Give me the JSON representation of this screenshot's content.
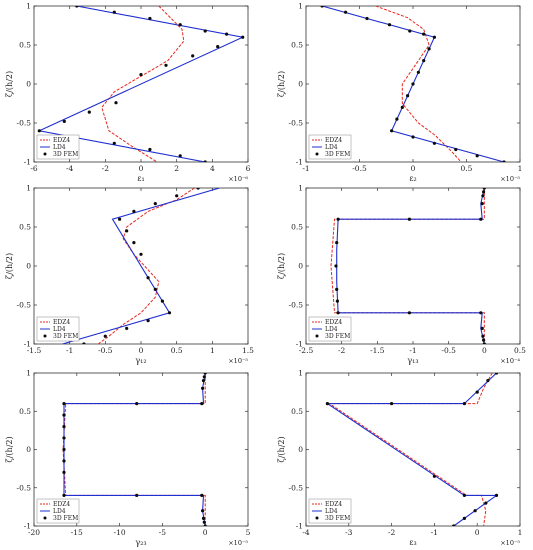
{
  "figure": {
    "colors": {
      "red": "#e8261c",
      "blue": "#1f2fd0",
      "black": "#0a0a0a",
      "axis": "#333333"
    }
  },
  "chart_data": [
    {
      "type": "line",
      "xlabel": "ε₁",
      "ylabel": "ζ/(h/2)",
      "xlim": [
        -6,
        6
      ],
      "ylim": [
        -1,
        1
      ],
      "xticks": [
        -6,
        -4,
        -2,
        0,
        2,
        4,
        6
      ],
      "xtick_labels": [
        "-6",
        "-4",
        "-2",
        "0",
        "2",
        "4",
        "6"
      ],
      "yticks": [
        -1,
        -0.5,
        0,
        0.5,
        1
      ],
      "ytick_labels": [
        "-1",
        "-0.5",
        "0",
        "0.5",
        "1"
      ],
      "exponent": "×10⁻⁶",
      "legend": {
        "position": "bottom-left",
        "entries": [
          "EDZ4",
          "LD4",
          "3D FEM"
        ]
      },
      "series": [
        {
          "name": "EDZ4",
          "style": "dashed-red",
          "x": [
            1.0,
            2.3,
            2.4,
            1.5,
            0.0,
            -1.5,
            -2.2,
            -1.8,
            -0.5,
            0.9
          ],
          "y": [
            1.0,
            0.7,
            0.55,
            0.3,
            0.1,
            -0.1,
            -0.3,
            -0.6,
            -0.8,
            -1.0
          ]
        },
        {
          "name": "LD4",
          "style": "solid-blue",
          "x": [
            -3.6,
            5.7,
            -5.7,
            3.6
          ],
          "y": [
            1.0,
            0.6,
            -0.6,
            -1.0
          ]
        },
        {
          "name": "3D FEM",
          "style": "dots",
          "x": [
            -3.6,
            -1.5,
            0.5,
            2.2,
            3.6,
            4.8,
            5.7,
            4.3,
            2.9,
            1.4,
            0.0,
            -1.4,
            -2.9,
            -4.3,
            -5.7,
            -3.6,
            -1.5,
            0.5,
            2.2,
            3.6
          ],
          "y": [
            1.0,
            0.92,
            0.84,
            0.76,
            0.68,
            0.64,
            0.6,
            0.48,
            0.36,
            0.24,
            0.12,
            -0.24,
            -0.36,
            -0.48,
            -0.6,
            -0.68,
            -0.76,
            -0.84,
            -0.92,
            -1.0
          ]
        }
      ]
    },
    {
      "type": "line",
      "xlabel": "ε₂",
      "ylabel": "ζ/(h/2)",
      "xlim": [
        -1,
        1
      ],
      "ylim": [
        -1,
        1
      ],
      "xticks": [
        -1,
        -0.5,
        0,
        0.5,
        1
      ],
      "xtick_labels": [
        "-1",
        "-0.5",
        "0",
        "0.5",
        "1"
      ],
      "yticks": [
        -1,
        -0.5,
        0,
        0.5,
        1
      ],
      "ytick_labels": [
        "-1",
        "-0.5",
        "0",
        "0.5",
        "1"
      ],
      "exponent": "×10⁻⁵",
      "legend": {
        "position": "bottom-left",
        "entries": [
          "EDZ4",
          "LD4",
          "3D FEM"
        ]
      },
      "series": [
        {
          "name": "EDZ4",
          "style": "dashed-red",
          "x": [
            -0.35,
            -0.05,
            0.1,
            0.15,
            0.05,
            -0.1,
            -0.1,
            0.05,
            0.2,
            0.35,
            0.45
          ],
          "y": [
            1.0,
            0.85,
            0.7,
            0.5,
            0.3,
            0.0,
            -0.25,
            -0.5,
            -0.65,
            -0.85,
            -1.0
          ]
        },
        {
          "name": "LD4",
          "style": "solid-blue",
          "x": [
            -0.85,
            0.2,
            -0.2,
            0.85
          ],
          "y": [
            1.0,
            0.6,
            -0.6,
            -1.0
          ]
        },
        {
          "name": "3D FEM",
          "style": "dots",
          "x": [
            -0.85,
            -0.63,
            -0.43,
            -0.22,
            -0.03,
            0.1,
            0.2,
            0.15,
            0.1,
            0.05,
            0.0,
            -0.05,
            -0.1,
            -0.15,
            -0.2,
            0.0,
            0.2,
            0.4,
            0.6,
            0.85
          ],
          "y": [
            1.0,
            0.92,
            0.84,
            0.76,
            0.68,
            0.64,
            0.6,
            0.45,
            0.3,
            0.15,
            0.0,
            -0.15,
            -0.3,
            -0.45,
            -0.6,
            -0.68,
            -0.76,
            -0.84,
            -0.92,
            -1.0
          ]
        }
      ]
    },
    {
      "type": "line",
      "xlabel": "γ₁₂",
      "ylabel": "ζ/(h/2)",
      "xlim": [
        -1.5,
        1.5
      ],
      "ylim": [
        -1,
        1
      ],
      "xticks": [
        -1.5,
        -1,
        -0.5,
        0,
        0.5,
        1,
        1.5
      ],
      "xtick_labels": [
        "-1.5",
        "-1",
        "-0.5",
        "0",
        "0.5",
        "1",
        "1.5"
      ],
      "yticks": [
        -1,
        -0.5,
        0,
        0.5,
        1
      ],
      "ytick_labels": [
        "-1",
        "-0.5",
        "0",
        "0.5",
        "1"
      ],
      "exponent": "×10⁻⁵",
      "legend": {
        "position": "bottom-left",
        "entries": [
          "EDZ4",
          "LD4",
          "3D FEM"
        ]
      },
      "series": [
        {
          "name": "EDZ4",
          "style": "dashed-red",
          "x": [
            0.75,
            0.5,
            0.1,
            -0.2,
            -0.25,
            -0.1,
            0.1,
            0.25,
            0.2,
            0.0,
            -0.25,
            -0.45,
            -0.6
          ],
          "y": [
            1.0,
            0.85,
            0.7,
            0.5,
            0.35,
            0.15,
            -0.05,
            -0.2,
            -0.4,
            -0.6,
            -0.75,
            -0.9,
            -1.0
          ]
        },
        {
          "name": "LD4",
          "style": "solid-blue",
          "x": [
            1.1,
            -0.4,
            0.4,
            -1.1
          ],
          "y": [
            1.0,
            0.6,
            -0.6,
            -1.0
          ]
        },
        {
          "name": "3D FEM",
          "style": "dots",
          "x": [
            0.8,
            0.5,
            0.2,
            -0.1,
            -0.3,
            -0.2,
            -0.1,
            0.0,
            0.1,
            0.2,
            0.3,
            0.4,
            0.1,
            -0.2,
            -0.5,
            -0.8
          ],
          "y": [
            1.0,
            0.9,
            0.8,
            0.7,
            0.6,
            0.45,
            0.3,
            0.15,
            -0.15,
            -0.3,
            -0.45,
            -0.6,
            -0.7,
            -0.8,
            -0.9,
            -1.0
          ]
        }
      ]
    },
    {
      "type": "line",
      "xlabel": "γ₁₃",
      "ylabel": "ζ/(h/2)",
      "xlim": [
        -2.5,
        0.5
      ],
      "ylim": [
        -1,
        1
      ],
      "xticks": [
        -2.5,
        -2,
        -1.5,
        -1,
        -0.5,
        0,
        0.5
      ],
      "xtick_labels": [
        "-2.5",
        "-2",
        "-1.5",
        "-1",
        "-0.5",
        "0",
        "0.5"
      ],
      "yticks": [
        -1,
        -0.5,
        0,
        0.5,
        1
      ],
      "ytick_labels": [
        "-1",
        "-0.5",
        "0",
        "0.5",
        "1"
      ],
      "exponent": "×10⁻⁴",
      "legend": {
        "position": "bottom-left",
        "entries": [
          "EDZ4",
          "LD4",
          "3D FEM"
        ]
      },
      "series": [
        {
          "name": "EDZ4",
          "style": "dashed-red",
          "x": [
            0.0,
            0.0,
            -2.1,
            -2.15,
            -2.1,
            0.0,
            0.0
          ],
          "y": [
            1.0,
            0.6,
            0.6,
            0.0,
            -0.6,
            -0.6,
            -1.0
          ]
        },
        {
          "name": "LD4",
          "style": "solid-blue",
          "x": [
            0.0,
            -0.05,
            -0.03,
            -2.05,
            -2.07,
            -2.07,
            -2.07,
            -2.05,
            -0.03,
            -0.05,
            0.0
          ],
          "y": [
            1.0,
            0.8,
            0.6,
            0.6,
            0.2,
            0.0,
            -0.2,
            -0.6,
            -0.6,
            -0.8,
            -1.0
          ]
        },
        {
          "name": "3D FEM",
          "style": "dots",
          "x": [
            0.0,
            -0.01,
            -0.02,
            -0.03,
            -0.05,
            -1.05,
            -2.05,
            -2.07,
            -2.08,
            -2.07,
            -2.06,
            -2.05,
            -1.05,
            -0.05,
            -0.03,
            -0.02,
            -0.01,
            0.0
          ],
          "y": [
            1.0,
            0.95,
            0.9,
            0.8,
            0.6,
            0.6,
            0.6,
            0.3,
            0.0,
            -0.3,
            -0.45,
            -0.6,
            -0.6,
            -0.6,
            -0.8,
            -0.9,
            -0.95,
            -1.0
          ]
        }
      ]
    },
    {
      "type": "line",
      "xlabel": "γ₂₃",
      "ylabel": "ζ/(h/2)",
      "xlim": [
        -20,
        5
      ],
      "ylim": [
        -1,
        1
      ],
      "xticks": [
        -20,
        -15,
        -10,
        -5,
        0,
        5
      ],
      "xtick_labels": [
        "-20",
        "-15",
        "-10",
        "-5",
        "0",
        "5"
      ],
      "yticks": [
        -1,
        -0.5,
        0,
        0.5,
        1
      ],
      "ytick_labels": [
        "-1",
        "-0.5",
        "0",
        "0.5",
        "1"
      ],
      "exponent": "×10⁻⁵",
      "legend": {
        "position": "bottom-left",
        "entries": [
          "EDZ4",
          "LD4",
          "3D FEM"
        ]
      },
      "series": [
        {
          "name": "EDZ4",
          "style": "dashed-red",
          "x": [
            0.0,
            0.0,
            -16.3,
            -16.6,
            -16.3,
            0.0,
            0.0
          ],
          "y": [
            1.0,
            0.6,
            0.6,
            0.0,
            -0.6,
            -0.6,
            -1.0
          ]
        },
        {
          "name": "LD4",
          "style": "solid-blue",
          "x": [
            0.0,
            -0.3,
            -0.2,
            -16.5,
            -16.5,
            -16.5,
            -0.2,
            -0.3,
            0.0
          ],
          "y": [
            1.0,
            0.8,
            0.6,
            0.6,
            0.0,
            -0.6,
            -0.6,
            -0.8,
            -1.0
          ]
        },
        {
          "name": "3D FEM",
          "style": "dots",
          "x": [
            0.0,
            -0.1,
            -0.2,
            -0.3,
            -0.4,
            -8.0,
            -16.5,
            -16.5,
            -16.5,
            -16.5,
            -16.5,
            -16.5,
            -16.5,
            -16.5,
            -8.0,
            -0.4,
            -0.3,
            -0.2,
            -0.1,
            0.0
          ],
          "y": [
            1.0,
            0.95,
            0.9,
            0.8,
            0.6,
            0.6,
            0.6,
            0.45,
            0.3,
            0.15,
            0.0,
            -0.15,
            -0.3,
            -0.6,
            -0.6,
            -0.6,
            -0.8,
            -0.9,
            -0.95,
            -1.0
          ]
        }
      ]
    },
    {
      "type": "line",
      "xlabel": "ε₃",
      "ylabel": "ζ/(h/2)",
      "xlim": [
        -4,
        1
      ],
      "ylim": [
        -1,
        1
      ],
      "xticks": [
        -4,
        -3,
        -2,
        -1,
        0,
        1
      ],
      "xtick_labels": [
        "-4",
        "-3",
        "-2",
        "-1",
        "0",
        "1"
      ],
      "yticks": [
        -1,
        -0.5,
        0,
        0.5,
        1
      ],
      "ytick_labels": [
        "-1",
        "-0.5",
        "0",
        "0.5",
        "1"
      ],
      "exponent": "×10⁻⁵",
      "legend": {
        "position": "bottom-left",
        "entries": [
          "EDZ4",
          "LD4",
          "3D FEM"
        ]
      },
      "series": [
        {
          "name": "EDZ4",
          "style": "dashed-red",
          "x": [
            0.35,
            0.15,
            0.0,
            -3.45,
            -0.25,
            0.1,
            0.2,
            0.15
          ],
          "y": [
            1.0,
            0.8,
            0.6,
            0.6,
            -0.6,
            -0.6,
            -0.8,
            -1.0
          ]
        },
        {
          "name": "LD4",
          "style": "solid-blue",
          "x": [
            0.45,
            -0.3,
            -3.5,
            -0.3,
            0.45,
            -0.55
          ],
          "y": [
            1.0,
            0.6,
            0.6,
            -0.6,
            -0.6,
            -1.0
          ]
        },
        {
          "name": "3D FEM",
          "style": "dots",
          "x": [
            0.45,
            0.25,
            0.0,
            -0.3,
            -2.0,
            -3.5,
            -1.0,
            -0.3,
            0.45,
            0.2,
            -0.05,
            -0.3,
            -0.55
          ],
          "y": [
            1.0,
            0.9,
            0.75,
            0.6,
            0.6,
            0.6,
            -0.35,
            -0.6,
            -0.6,
            -0.7,
            -0.8,
            -0.9,
            -1.0
          ]
        }
      ]
    }
  ]
}
